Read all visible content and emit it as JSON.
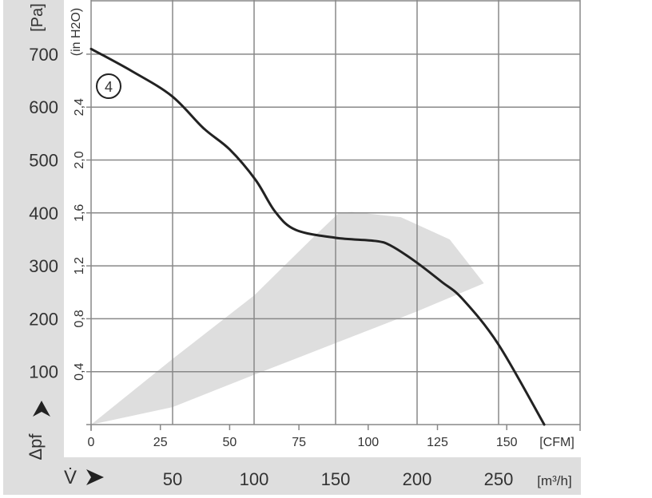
{
  "chart_data": {
    "type": "line",
    "title": "",
    "curve_label": "4",
    "y_axis": {
      "label": "Δpf",
      "unit": "[Pa]",
      "ticks": [
        100,
        200,
        300,
        400,
        500,
        600,
        700
      ],
      "range": [
        0,
        800
      ],
      "secondary_unit": "(in H2O)",
      "secondary_ticks": [
        "0,4",
        "0,8",
        "1,2",
        "1,6",
        "2,0",
        "2,4"
      ]
    },
    "x_axis": {
      "label": "V̇",
      "unit": "[m³/h]",
      "ticks": [
        50,
        100,
        150,
        200,
        250
      ],
      "range": [
        0,
        300
      ],
      "secondary_unit": "[CFM]",
      "secondary_ticks": [
        "0",
        "25",
        "50",
        "75",
        "100",
        "125",
        "150"
      ]
    },
    "grid": true,
    "series": [
      {
        "points": [
          [
            0,
            710
          ],
          [
            25,
            668
          ],
          [
            49.5,
            621
          ],
          [
            69,
            560
          ],
          [
            85,
            520
          ],
          [
            101,
            462
          ],
          [
            113,
            402
          ],
          [
            125.5,
            368
          ],
          [
            150,
            353
          ],
          [
            174.5,
            347
          ],
          [
            184,
            338
          ],
          [
            199,
            308
          ],
          [
            215,
            270
          ],
          [
            228,
            237
          ],
          [
            250,
            151
          ],
          [
            278,
            0
          ]
        ]
      }
    ],
    "operating_region": {
      "lower": [
        [
          0,
          0
        ],
        [
          50,
          33
        ],
        [
          100,
          94
        ],
        [
          150,
          154
        ],
        [
          200,
          214
        ],
        [
          241,
          267
        ]
      ],
      "upper": [
        [
          241,
          267
        ],
        [
          220,
          350
        ],
        [
          190,
          392
        ],
        [
          160,
          402
        ],
        [
          152,
          400
        ],
        [
          135,
          350
        ],
        [
          100,
          244
        ],
        [
          50,
          124
        ],
        [
          0,
          0
        ]
      ]
    },
    "colors": {
      "curve": "#222222",
      "grid": "#888888",
      "region": "#dedede",
      "band": "#dedede"
    }
  }
}
